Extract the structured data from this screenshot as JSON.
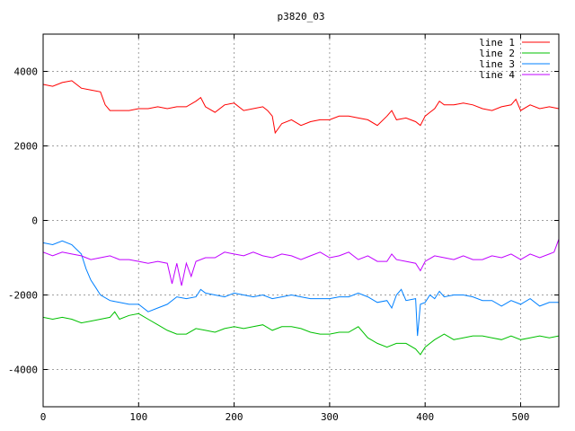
{
  "chart_data": {
    "type": "line",
    "title": "p3820_03",
    "xlabel": "",
    "ylabel": "",
    "xlim": [
      0,
      540
    ],
    "ylim": [
      -5000,
      5000
    ],
    "xticks": [
      0,
      100,
      200,
      300,
      400,
      500
    ],
    "yticks": [
      -4000,
      -2000,
      0,
      2000,
      4000
    ],
    "grid": true,
    "legend_position": "top-right",
    "series": [
      {
        "name": "line 1",
        "color": "#ff0000",
        "x": [
          0,
          10,
          20,
          30,
          40,
          50,
          60,
          65,
          70,
          80,
          90,
          100,
          110,
          120,
          130,
          140,
          150,
          160,
          165,
          170,
          180,
          190,
          200,
          210,
          220,
          230,
          235,
          240,
          243,
          250,
          260,
          270,
          280,
          290,
          300,
          310,
          320,
          330,
          340,
          350,
          360,
          365,
          370,
          380,
          390,
          395,
          400,
          405,
          410,
          415,
          420,
          430,
          440,
          450,
          460,
          470,
          480,
          490,
          495,
          500,
          510,
          520,
          530,
          540
        ],
        "y": [
          3650,
          3600,
          3700,
          3750,
          3550,
          3500,
          3450,
          3100,
          2950,
          2950,
          2950,
          3000,
          3000,
          3050,
          3000,
          3050,
          3050,
          3200,
          3300,
          3050,
          2900,
          3100,
          3150,
          2950,
          3000,
          3050,
          2950,
          2800,
          2350,
          2600,
          2700,
          2550,
          2650,
          2700,
          2700,
          2800,
          2800,
          2750,
          2700,
          2550,
          2800,
          2950,
          2700,
          2750,
          2650,
          2550,
          2800,
          2900,
          3000,
          3200,
          3100,
          3100,
          3150,
          3100,
          3000,
          2950,
          3050,
          3100,
          3250,
          2950,
          3100,
          3000,
          3050,
          3000
        ]
      },
      {
        "name": "line 2",
        "color": "#00c000",
        "x": [
          0,
          10,
          20,
          30,
          40,
          50,
          60,
          70,
          75,
          80,
          90,
          100,
          110,
          120,
          130,
          140,
          150,
          160,
          170,
          180,
          190,
          200,
          210,
          220,
          230,
          240,
          250,
          260,
          270,
          280,
          290,
          300,
          310,
          320,
          330,
          340,
          350,
          360,
          370,
          380,
          390,
          395,
          400,
          410,
          420,
          430,
          440,
          450,
          460,
          470,
          480,
          490,
          500,
          510,
          520,
          530,
          540
        ],
        "y": [
          -2600,
          -2650,
          -2600,
          -2650,
          -2750,
          -2700,
          -2650,
          -2600,
          -2450,
          -2650,
          -2550,
          -2500,
          -2650,
          -2800,
          -2950,
          -3050,
          -3050,
          -2900,
          -2950,
          -3000,
          -2900,
          -2850,
          -2900,
          -2850,
          -2800,
          -2950,
          -2850,
          -2850,
          -2900,
          -3000,
          -3050,
          -3050,
          -3000,
          -3000,
          -2850,
          -3150,
          -3300,
          -3400,
          -3300,
          -3300,
          -3450,
          -3600,
          -3400,
          -3200,
          -3050,
          -3200,
          -3150,
          -3100,
          -3100,
          -3150,
          -3200,
          -3100,
          -3200,
          -3150,
          -3100,
          -3150,
          -3100
        ]
      },
      {
        "name": "line 3",
        "color": "#0080ff",
        "x": [
          0,
          10,
          20,
          30,
          40,
          45,
          50,
          55,
          60,
          70,
          80,
          90,
          100,
          110,
          120,
          130,
          140,
          150,
          160,
          165,
          170,
          180,
          190,
          200,
          210,
          220,
          230,
          240,
          250,
          260,
          270,
          280,
          290,
          300,
          310,
          320,
          330,
          340,
          350,
          360,
          365,
          370,
          375,
          380,
          390,
          392,
          395,
          400,
          405,
          410,
          415,
          420,
          430,
          440,
          450,
          460,
          470,
          480,
          490,
          500,
          510,
          520,
          530,
          540
        ],
        "y": [
          -600,
          -650,
          -550,
          -650,
          -900,
          -1300,
          -1600,
          -1800,
          -2000,
          -2150,
          -2200,
          -2250,
          -2250,
          -2450,
          -2350,
          -2250,
          -2050,
          -2100,
          -2050,
          -1850,
          -1950,
          -2000,
          -2050,
          -1950,
          -2000,
          -2050,
          -2000,
          -2100,
          -2050,
          -2000,
          -2050,
          -2100,
          -2100,
          -2100,
          -2050,
          -2050,
          -1950,
          -2050,
          -2200,
          -2150,
          -2350,
          -2000,
          -1850,
          -2150,
          -2100,
          -3100,
          -2250,
          -2200,
          -2000,
          -2100,
          -1900,
          -2050,
          -2000,
          -2000,
          -2050,
          -2150,
          -2150,
          -2300,
          -2150,
          -2250,
          -2100,
          -2300,
          -2200,
          -2200
        ]
      },
      {
        "name": "line 4",
        "color": "#c000ff",
        "x": [
          0,
          10,
          20,
          30,
          40,
          50,
          60,
          70,
          80,
          90,
          100,
          110,
          120,
          130,
          135,
          140,
          145,
          150,
          155,
          160,
          170,
          180,
          190,
          200,
          210,
          220,
          230,
          240,
          250,
          260,
          270,
          280,
          290,
          300,
          310,
          320,
          330,
          340,
          350,
          360,
          365,
          370,
          380,
          390,
          395,
          400,
          410,
          420,
          430,
          440,
          450,
          460,
          470,
          480,
          490,
          500,
          510,
          520,
          530,
          535,
          540
        ],
        "y": [
          -850,
          -950,
          -850,
          -900,
          -950,
          -1050,
          -1000,
          -950,
          -1050,
          -1050,
          -1100,
          -1150,
          -1100,
          -1150,
          -1700,
          -1150,
          -1750,
          -1150,
          -1500,
          -1100,
          -1000,
          -1000,
          -850,
          -900,
          -950,
          -850,
          -950,
          -1000,
          -900,
          -950,
          -1050,
          -950,
          -850,
          -1000,
          -950,
          -850,
          -1050,
          -950,
          -1100,
          -1100,
          -900,
          -1050,
          -1100,
          -1150,
          -1350,
          -1100,
          -950,
          -1000,
          -1050,
          -950,
          -1050,
          -1050,
          -950,
          -1000,
          -900,
          -1050,
          -900,
          -1000,
          -900,
          -850,
          -500
        ]
      }
    ]
  }
}
